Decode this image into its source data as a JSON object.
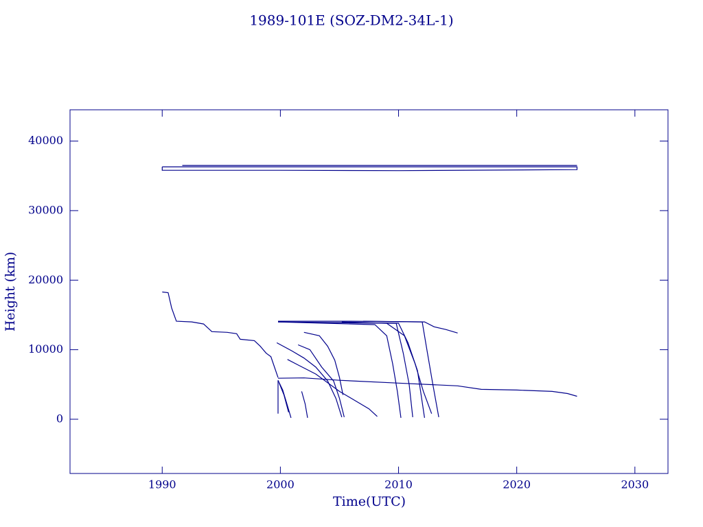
{
  "chart_data": {
    "type": "line",
    "title": "1989-101E (SOZ-DM2-34L-1)",
    "x_label": "Time(UTC)",
    "y_label": "Height (km)",
    "color": "#00008b",
    "xlim": [
      1982.2,
      2032.8
    ],
    "ylim": [
      -7800,
      44500
    ],
    "xticks": [
      1990,
      2000,
      2010,
      2020,
      2030
    ],
    "yticks": [
      0,
      10000,
      20000,
      30000,
      40000
    ],
    "series": [
      {
        "x": [
          1991.7,
          2025.1
        ],
        "values": [
          36500,
          36500
        ]
      },
      {
        "x": [
          1990,
          2025.1,
          2025.1,
          2010,
          2000,
          1990,
          1990
        ],
        "values": [
          36300,
          36300,
          35900,
          35750,
          35800,
          35800,
          36300
        ]
      },
      {
        "x": [
          1990,
          1990.5,
          1990.8,
          1991.2,
          1992.5,
          1993.5,
          1994.2,
          1995.5,
          1996.3,
          1996.6,
          1997.8,
          1998.3,
          1998.8,
          1999.2,
          1999.5,
          1999.8
        ],
        "values": [
          18300,
          18200,
          16000,
          14100,
          14000,
          13700,
          12600,
          12500,
          12300,
          11500,
          11300,
          10500,
          9500,
          9000,
          7500,
          6000
        ]
      },
      {
        "x": [
          1999.8,
          2002,
          2005,
          2010,
          2015,
          2017,
          2020,
          2023,
          2024.3,
          2025.1
        ],
        "values": [
          5900,
          5950,
          5600,
          5200,
          4800,
          4300,
          4200,
          4000,
          3700,
          3300
        ]
      },
      {
        "x": [
          1999.8,
          1999.8
        ],
        "values": [
          5600,
          800
        ]
      },
      {
        "x": [
          1999.8,
          2000.2,
          2000.5,
          2000.9
        ],
        "values": [
          5600,
          4200,
          2500,
          200
        ]
      },
      {
        "x": [
          1999.9,
          2000.3,
          2000.7
        ],
        "values": [
          5200,
          3500,
          1000
        ]
      },
      {
        "x": [
          2001.8,
          2002.1,
          2002.3
        ],
        "values": [
          4000,
          2200,
          200
        ]
      },
      {
        "x": [
          1999.7,
          2001,
          2002,
          2003,
          2004,
          2004.7,
          2005.2
        ],
        "values": [
          11000,
          9800,
          8800,
          7500,
          5500,
          3000,
          300
        ]
      },
      {
        "x": [
          2001.5,
          2002.5,
          2003.5,
          2004.5,
          2005.0,
          2005.4
        ],
        "values": [
          10700,
          10000,
          7500,
          5500,
          3000,
          300
        ]
      },
      {
        "x": [
          2000.6,
          2001.5,
          2003,
          2005,
          2006.5,
          2007.5,
          2008.2
        ],
        "values": [
          8600,
          7800,
          6500,
          4000,
          2500,
          1500,
          400
        ]
      },
      {
        "x": [
          2002,
          2003.3,
          2004,
          2004.6,
          2005,
          2005.3
        ],
        "values": [
          12500,
          12000,
          10500,
          8500,
          6000,
          3500
        ]
      },
      {
        "x": [
          1999.8,
          2006,
          2012.2,
          2013,
          2014,
          2015
        ],
        "values": [
          14100,
          14100,
          14000,
          13300,
          12900,
          12400
        ]
      },
      {
        "x": [
          1999.8,
          2008,
          2009,
          2009.5,
          2009.9,
          2010.2
        ],
        "values": [
          14000,
          13600,
          12000,
          8000,
          4000,
          200
        ]
      },
      {
        "x": [
          1999.8,
          2009.8,
          2010.4,
          2010.9,
          2011.2
        ],
        "values": [
          14000,
          13800,
          9500,
          5000,
          300
        ]
      },
      {
        "x": [
          2003,
          2010,
          2010.8,
          2011.6,
          2012.2
        ],
        "values": [
          13900,
          13800,
          11000,
          7000,
          200
        ]
      },
      {
        "x": [
          2005.2,
          2009,
          2010.5,
          2011.4,
          2012.1,
          2012.8
        ],
        "values": [
          14000,
          13800,
          12000,
          8000,
          4000,
          800
        ]
      },
      {
        "x": [
          2007,
          2012,
          2012.4,
          2012.9,
          2013.4
        ],
        "values": [
          14100,
          14000,
          10000,
          5000,
          300
        ]
      }
    ]
  }
}
